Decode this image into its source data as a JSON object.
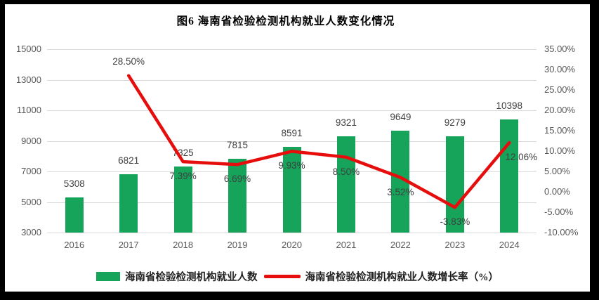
{
  "title": "图6  海南省检验检测机构就业人数变化情况",
  "colors": {
    "bar": "#15a45a",
    "line": "#e60d0d",
    "grid": "#d9d9d9",
    "axis_text": "#595959",
    "data_label": "#404040",
    "title_text": "#000000",
    "chart_background": "#ffffff",
    "frame_background": "#000000"
  },
  "legend": {
    "items": [
      {
        "label": "海南省检验检测机构就业人数",
        "marker": "bar-swatch"
      },
      {
        "label": "海南省检验检测机构就业人数增长率（%）",
        "marker": "line-swatch"
      }
    ]
  },
  "chart_data": {
    "type": "combo-bar-line",
    "title": "图6  海南省检验检测机构就业人数变化情况",
    "categories": [
      "2016",
      "2017",
      "2018",
      "2019",
      "2020",
      "2021",
      "2022",
      "2023",
      "2024"
    ],
    "series": [
      {
        "name": "海南省检验检测机构就业人数",
        "type": "bar",
        "axis": "left",
        "values": [
          5308,
          6821,
          7325,
          7815,
          8591,
          9321,
          9649,
          9279,
          10398
        ],
        "data_labels": [
          "5308",
          "6821",
          "7325",
          "7815",
          "8591",
          "9321",
          "9649",
          "9279",
          "10398"
        ]
      },
      {
        "name": "海南省检验检测机构就业人数增长率（%）",
        "type": "line",
        "axis": "right",
        "values": [
          null,
          28.5,
          7.39,
          6.69,
          9.93,
          8.5,
          3.52,
          -3.83,
          12.06
        ],
        "data_labels": [
          null,
          "28.50%",
          "7.39%",
          "6.69%",
          "9.93%",
          "8.50%",
          "3.52%",
          "-3.83%",
          "12.06%"
        ],
        "label_placement": [
          null,
          "above",
          "below",
          "below",
          "below",
          "below",
          "below",
          "below",
          "below-right"
        ]
      }
    ],
    "left_axis": {
      "min": 3000,
      "max": 15000,
      "step": 2000,
      "ticks": [
        "15000",
        "13000",
        "11000",
        "9000",
        "7000",
        "5000",
        "3000"
      ]
    },
    "right_axis": {
      "min": -10,
      "max": 35,
      "step": 5,
      "ticks": [
        "35.00%",
        "30.00%",
        "25.00%",
        "20.00%",
        "15.00%",
        "10.00%",
        "5.00%",
        "0.00%",
        "-5.00%",
        "-10.00%"
      ]
    },
    "legend_position": "bottom",
    "grid": "horizontal-only"
  }
}
